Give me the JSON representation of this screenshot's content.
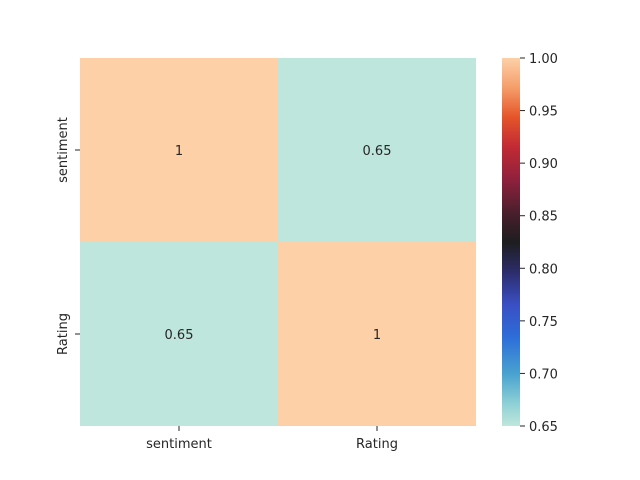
{
  "chart_data": {
    "type": "heatmap",
    "title": "",
    "xlabel": "",
    "ylabel": "",
    "x_categories": [
      "sentiment",
      "Rating"
    ],
    "y_categories": [
      "sentiment",
      "Rating"
    ],
    "values": [
      [
        1,
        0.65
      ],
      [
        0.65,
        1
      ]
    ],
    "annotations": [
      [
        "1",
        "0.65"
      ],
      [
        "0.65",
        "1"
      ]
    ],
    "colorbar": {
      "min": 0.65,
      "max": 1.0,
      "ticks": [
        "0.65",
        "0.70",
        "0.75",
        "0.80",
        "0.85",
        "0.90",
        "0.95",
        "1.00"
      ],
      "colormap": "icefire",
      "low_color": "#bfe6dc",
      "high_color": "#fdd0a8"
    },
    "grid": false
  }
}
